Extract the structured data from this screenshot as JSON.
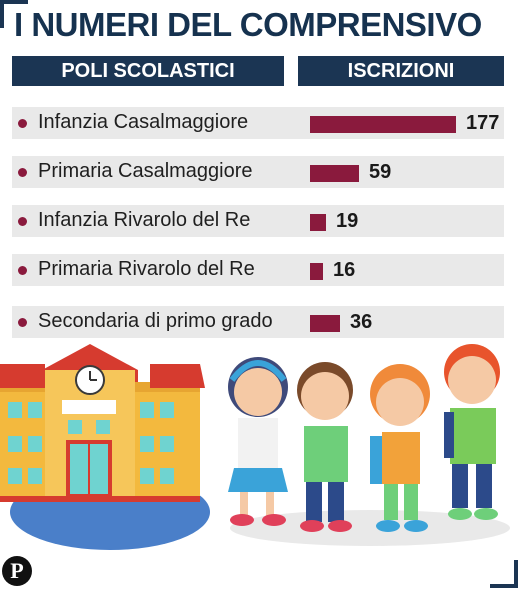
{
  "header": {
    "title": "I NUMERI DEL COMPRENSIVO",
    "col_left": "POLI SCOLASTICI",
    "col_right": "ISCRIZIONI"
  },
  "colors": {
    "accent": "#8a1a3d",
    "header_bg": "#1b3553",
    "row_bg": "#e9e9e9"
  },
  "chart_data": {
    "type": "bar",
    "categories": [
      "Infanzia Casalmaggiore",
      "Primaria Casalmaggiore",
      "Infanzia Rivarolo del Re",
      "Primaria Rivarolo del Re",
      "Secondaria di primo grado"
    ],
    "values": [
      177,
      59,
      19,
      16,
      36
    ],
    "value_labels": [
      "177",
      "59",
      "19",
      "16",
      "36"
    ]
  },
  "icons": [
    "school-building-illustration",
    "children-illustration",
    "publisher-logo"
  ]
}
